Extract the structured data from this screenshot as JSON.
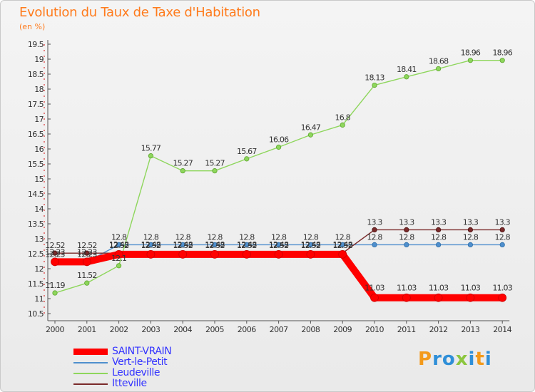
{
  "chart_data": {
    "type": "line",
    "title": "Evolution du Taux de Taxe d'Habitation",
    "subtitle": "(en %)",
    "categories": [
      "2000",
      "2001",
      "2002",
      "2003",
      "2004",
      "2005",
      "2006",
      "2007",
      "2008",
      "2009",
      "2010",
      "2011",
      "2012",
      "2013",
      "2014"
    ],
    "ylim": [
      10.5,
      19.5
    ],
    "yticks": [
      "10.5",
      "11",
      "11.5",
      "12",
      "12.5",
      "13",
      "13.5",
      "14",
      "14.5",
      "15",
      "15.5",
      "16",
      "16.5",
      "17",
      "17.5",
      "18",
      "18.5",
      "19",
      "19.5"
    ],
    "grid": false,
    "legend_position": "bottom-left",
    "series": [
      {
        "name": "SAINT-VRAIN",
        "color": "#ff0000",
        "values": [
          12.23,
          12.23,
          12.48,
          12.48,
          12.48,
          12.48,
          12.48,
          12.48,
          12.48,
          12.48,
          11.03,
          11.03,
          11.03,
          11.03,
          11.03
        ],
        "labels": [
          "12.23",
          "12.23",
          "12.48",
          "12.48",
          "12.48",
          "12.48",
          "12.48",
          "12.48",
          "12.48",
          "12.48",
          "11.03",
          "11.03",
          "11.03",
          "11.03",
          "11.03"
        ]
      },
      {
        "name": "Vert-le-Petit",
        "color": "#4f8fcd",
        "values": [
          12.23,
          12.23,
          12.8,
          12.8,
          12.8,
          12.8,
          12.8,
          12.8,
          12.8,
          12.8,
          12.8,
          12.8,
          12.8,
          12.8,
          12.8
        ],
        "labels": [
          "12.23",
          "12.23",
          "12.8",
          "12.8",
          "12.8",
          "12.8",
          "12.8",
          "12.8",
          "12.8",
          "12.8",
          "12.8",
          "12.8",
          "12.8",
          "12.8",
          "12.8"
        ]
      },
      {
        "name": "Leudeville",
        "color": "#8ed65c",
        "values": [
          11.19,
          11.52,
          12.1,
          15.77,
          15.27,
          15.27,
          15.67,
          16.06,
          16.47,
          16.8,
          18.13,
          18.41,
          18.68,
          18.96,
          18.96
        ],
        "labels": [
          "11.19",
          "11.52",
          "12.1",
          "15.77",
          "15.27",
          "15.27",
          "15.67",
          "16.06",
          "16.47",
          "16.8",
          "18.13",
          "18.41",
          "18.68",
          "18.96",
          "18.96"
        ]
      },
      {
        "name": "Itteville",
        "color": "#7a2a2a",
        "values": [
          12.52,
          12.52,
          12.52,
          12.52,
          12.52,
          12.52,
          12.52,
          12.52,
          12.52,
          12.52,
          13.3,
          13.3,
          13.3,
          13.3,
          13.3
        ],
        "labels": [
          "12.52",
          "12.52",
          "12.52",
          "12.52",
          "12.52",
          "12.52",
          "12.52",
          "12.52",
          "12.52",
          "12.52",
          "13.3",
          "13.3",
          "13.3",
          "13.3",
          "13.3"
        ]
      }
    ]
  },
  "brand": {
    "text": "Proxiti",
    "colors": [
      "#f39a1b",
      "#2f8fd8",
      "#2f8fd8",
      "#8cc63f",
      "#2f8fd8",
      "#f39a1b",
      "#2f8fd8"
    ]
  }
}
